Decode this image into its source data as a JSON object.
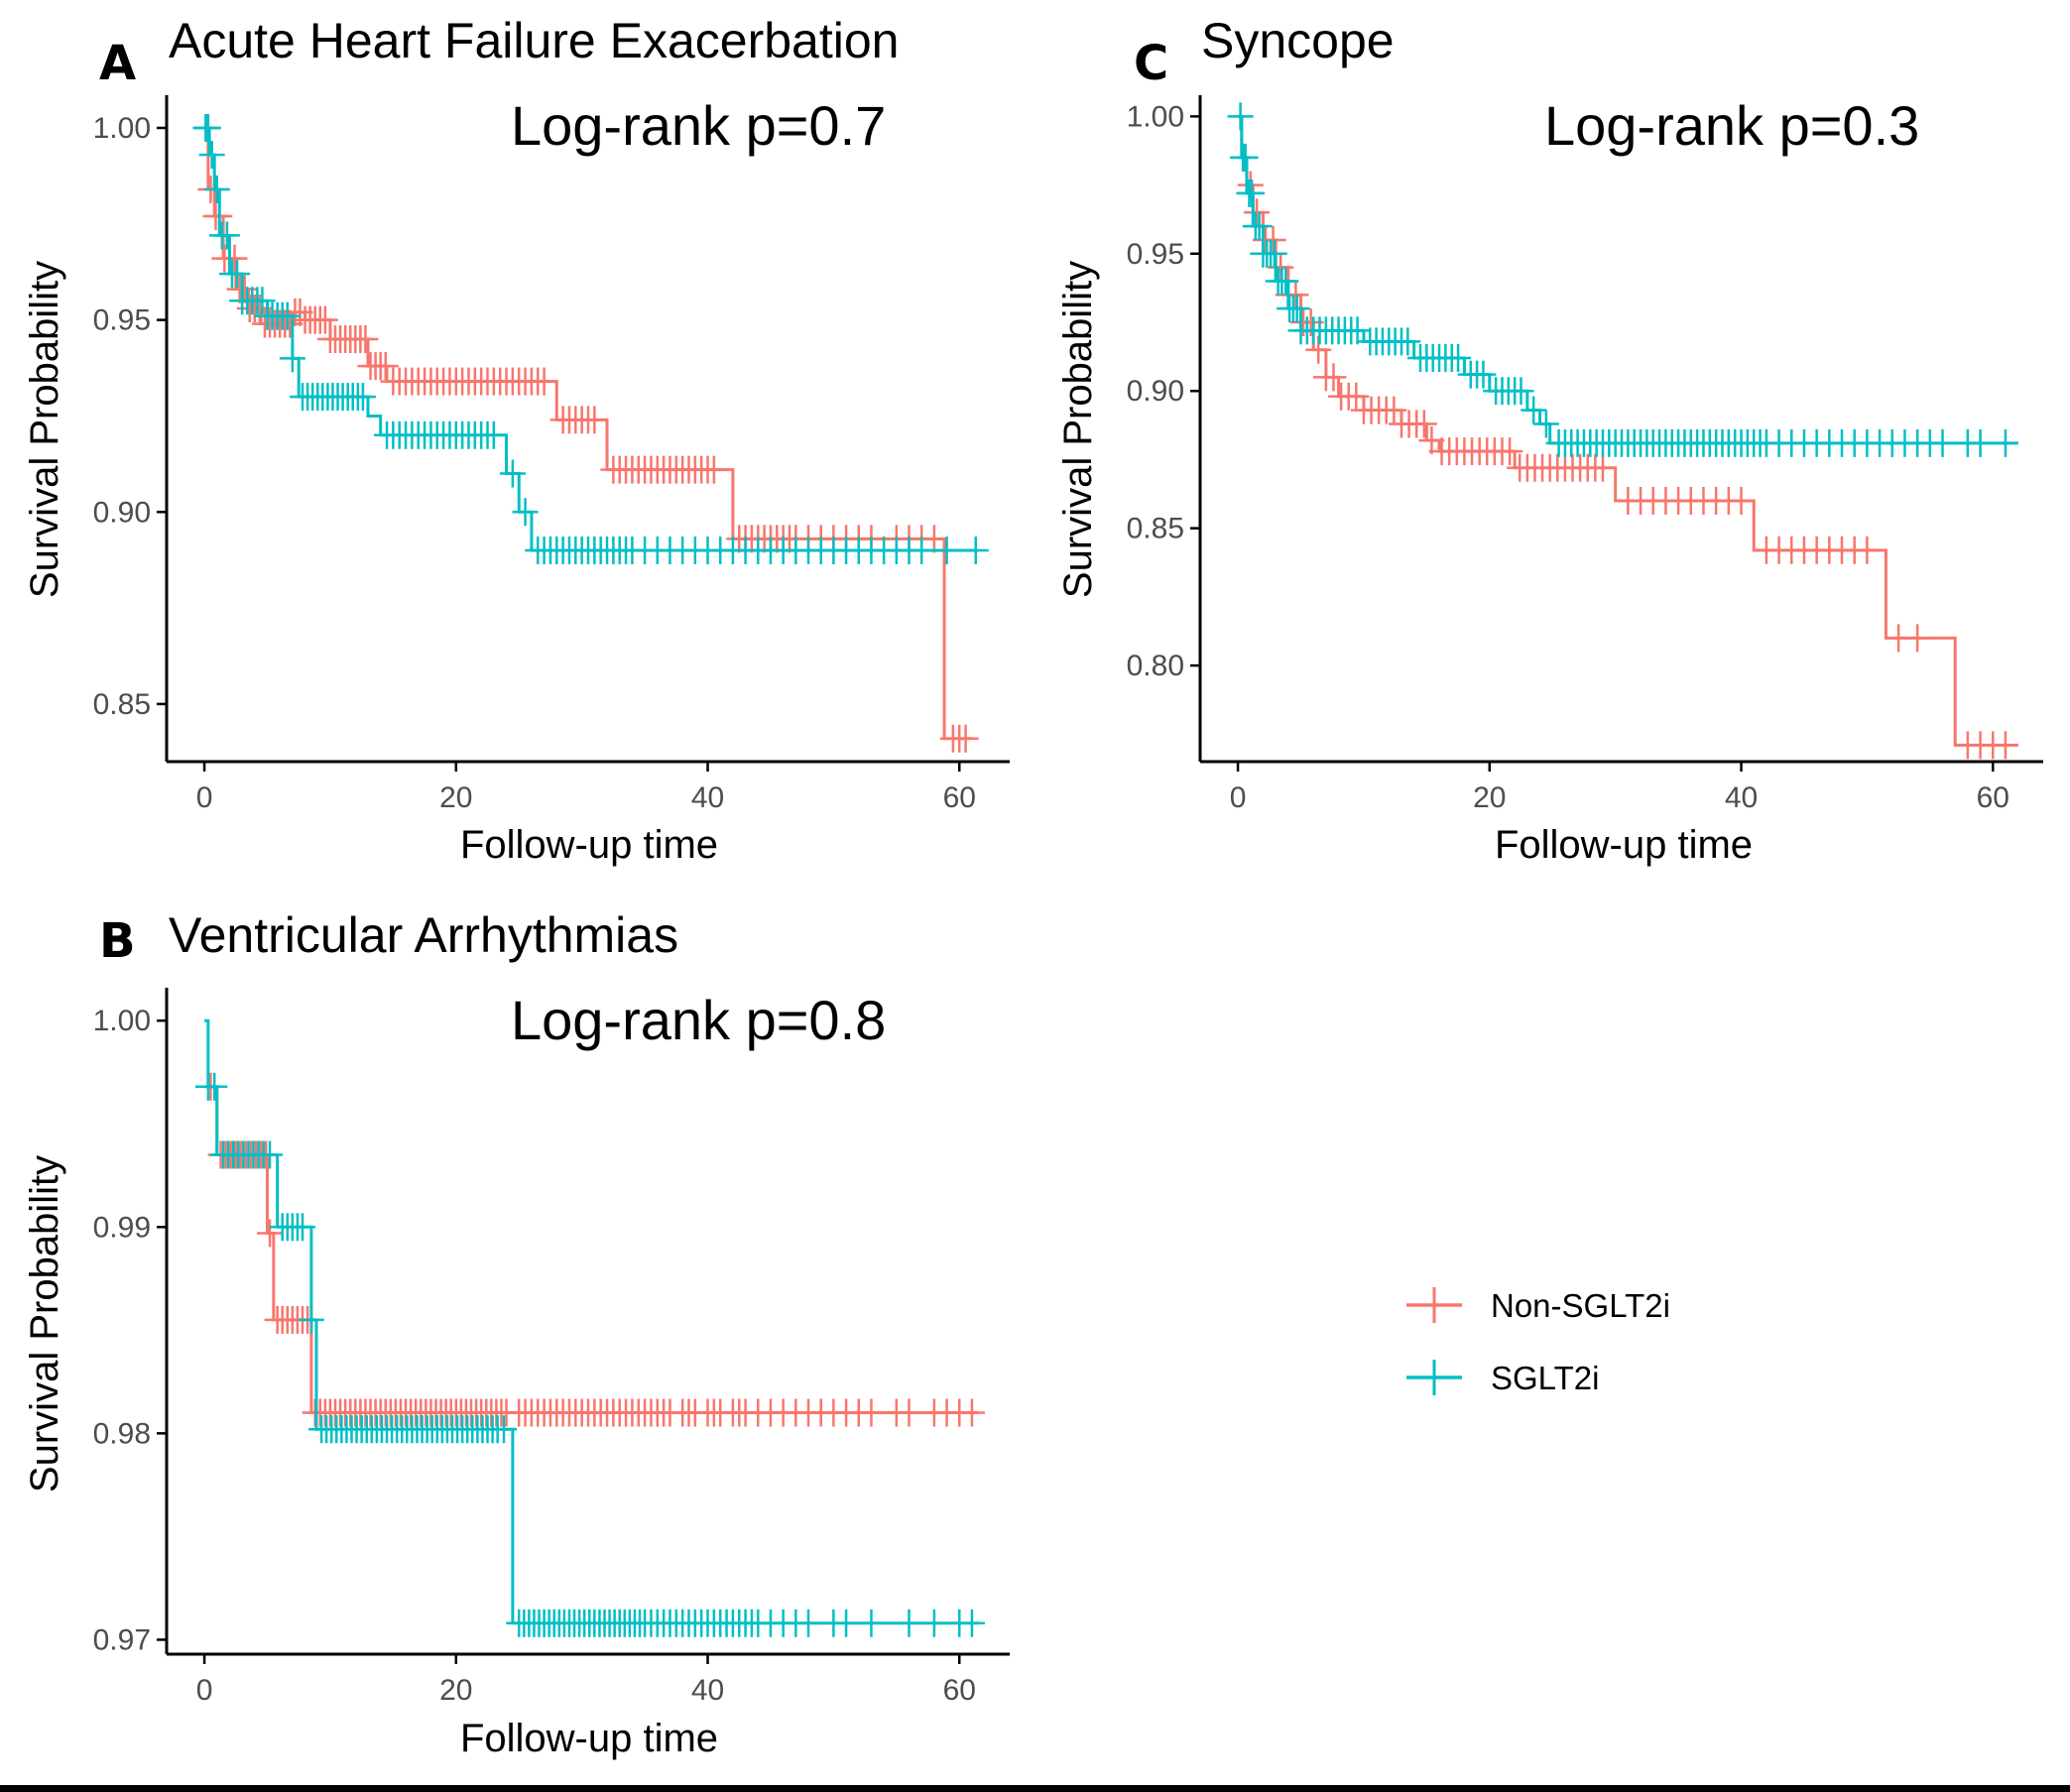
{
  "colors": {
    "non_sglt2i": "#F8766D",
    "sglt2i": "#00BFC4",
    "axis": "#000000",
    "tick_text": "#4D4D4D"
  },
  "legend": {
    "position": "right",
    "items": [
      {
        "label": "Non-SGLT2i",
        "color": "#F8766D"
      },
      {
        "label": "SGLT2i",
        "color": "#00BFC4"
      }
    ]
  },
  "chart_data": [
    {
      "panel": "A",
      "type": "line",
      "title": "Acute Heart Failure Exacerbation",
      "annotation": "Log-rank p=0.7",
      "xlabel": "Follow-up time",
      "ylabel": "Survival Probability",
      "xlim": [
        -3,
        64
      ],
      "ylim": [
        0.835,
        1.008
      ],
      "xticks": [
        "0",
        "20",
        "40",
        "60"
      ],
      "yticks": [
        "0.85",
        "0.90",
        "0.95",
        "1.00"
      ],
      "series": [
        {
          "name": "Non-SGLT2i",
          "steps": [
            [
              0,
              1.0
            ],
            [
              0.3,
              0.984
            ],
            [
              0.8,
              0.977
            ],
            [
              1.5,
              0.966
            ],
            [
              2.5,
              0.958
            ],
            [
              3.5,
              0.953
            ],
            [
              4.5,
              0.949
            ],
            [
              7,
              0.952
            ],
            [
              8,
              0.95
            ],
            [
              10,
              0.945
            ],
            [
              13,
              0.938
            ],
            [
              14.5,
              0.934
            ],
            [
              28,
              0.924
            ],
            [
              32,
              0.911
            ],
            [
              42,
              0.893
            ],
            [
              58.8,
              0.841
            ],
            [
              61,
              0.841
            ]
          ],
          "censors": [
            0.2,
            0.5,
            0.9,
            1.2,
            1.6,
            2.0,
            2.4,
            2.8,
            3.2,
            3.6,
            4.0,
            4.4,
            4.8,
            5.2,
            5.6,
            6.0,
            6.4,
            6.8,
            7.2,
            7.6,
            8.0,
            8.4,
            8.8,
            9.2,
            9.6,
            10.0,
            10.4,
            10.8,
            11.2,
            11.6,
            12.0,
            12.4,
            12.8,
            13.2,
            13.6,
            14.0,
            14.4,
            15,
            15.5,
            16,
            16.5,
            17,
            17.5,
            18,
            18.5,
            19,
            19.5,
            20,
            20.5,
            21,
            21.5,
            22,
            22.5,
            23,
            23.5,
            24,
            24.5,
            25,
            25.5,
            26,
            26.5,
            27,
            28.5,
            29,
            29.5,
            30,
            30.5,
            31,
            32.5,
            33,
            33.5,
            34,
            34.5,
            35,
            35.5,
            36,
            36.5,
            37,
            37.5,
            38,
            38.5,
            39,
            39.5,
            40,
            40.5,
            42.5,
            43,
            43.5,
            44,
            44.5,
            45,
            45.5,
            46,
            46.5,
            47,
            48,
            49,
            50,
            51,
            52,
            53,
            55,
            56,
            57,
            58,
            59.5,
            60,
            60.5
          ]
        },
        {
          "name": "SGLT2i",
          "steps": [
            [
              0,
              1.0
            ],
            [
              0.4,
              0.993
            ],
            [
              0.8,
              0.984
            ],
            [
              1.2,
              0.972
            ],
            [
              2,
              0.962
            ],
            [
              3,
              0.955
            ],
            [
              5,
              0.951
            ],
            [
              7,
              0.94
            ],
            [
              7.5,
              0.93
            ],
            [
              13,
              0.925
            ],
            [
              14,
              0.92
            ],
            [
              24,
              0.91
            ],
            [
              25,
              0.9
            ],
            [
              26,
              0.89
            ],
            [
              61.5,
              0.89
            ]
          ],
          "censors": [
            0.1,
            0.3,
            0.6,
            1.0,
            1.4,
            1.8,
            2.2,
            2.6,
            3.0,
            3.4,
            3.8,
            4.2,
            4.6,
            5.0,
            5.4,
            5.8,
            6.2,
            6.6,
            7.0,
            7.8,
            8.2,
            8.6,
            9.0,
            9.4,
            9.8,
            10.2,
            10.6,
            11.0,
            11.4,
            11.8,
            12.2,
            12.6,
            14.5,
            15,
            15.5,
            16,
            16.5,
            17,
            17.5,
            18,
            18.5,
            19,
            19.5,
            20,
            20.5,
            21,
            21.5,
            22,
            22.5,
            23,
            24.5,
            25.5,
            26.5,
            27,
            27.5,
            28,
            28.5,
            29,
            29.5,
            30,
            30.5,
            31,
            31.5,
            32,
            32.5,
            33,
            33.5,
            34,
            35,
            36,
            37,
            38,
            39,
            40,
            41,
            42,
            43,
            44,
            45,
            46,
            47,
            48,
            49,
            50,
            51,
            52,
            53,
            54,
            55,
            56,
            57,
            59,
            61.3
          ]
        }
      ]
    },
    {
      "panel": "C",
      "type": "line",
      "title": "Syncope",
      "annotation": "Log-rank p=0.3",
      "xlabel": "Follow-up time",
      "ylabel": "Survival Probability",
      "xlim": [
        -3,
        64
      ],
      "ylim": [
        0.765,
        1.007
      ],
      "xticks": [
        "0",
        "20",
        "40",
        "60"
      ],
      "yticks": [
        "0.80",
        "0.85",
        "0.90",
        "0.95",
        "1.00"
      ],
      "series": [
        {
          "name": "Non-SGLT2i",
          "steps": [
            [
              0,
              1.0
            ],
            [
              0.3,
              0.985
            ],
            [
              0.7,
              0.975
            ],
            [
              1.2,
              0.965
            ],
            [
              2,
              0.955
            ],
            [
              3,
              0.945
            ],
            [
              4,
              0.935
            ],
            [
              5,
              0.925
            ],
            [
              6,
              0.915
            ],
            [
              7,
              0.905
            ],
            [
              8,
              0.898
            ],
            [
              10,
              0.893
            ],
            [
              13,
              0.888
            ],
            [
              15,
              0.882
            ],
            [
              16,
              0.878
            ],
            [
              22,
              0.872
            ],
            [
              30,
              0.86
            ],
            [
              41,
              0.842
            ],
            [
              51.5,
              0.81
            ],
            [
              57,
              0.771
            ],
            [
              62,
              0.771
            ]
          ],
          "censors": [
            0.5,
            1.0,
            1.5,
            2.2,
            2.8,
            3.4,
            4.0,
            4.6,
            5.2,
            5.8,
            6.4,
            7.0,
            7.6,
            8.2,
            8.8,
            9.4,
            10.0,
            10.6,
            11.2,
            11.8,
            12.4,
            13.0,
            13.6,
            14.2,
            14.8,
            15.4,
            16.2,
            16.8,
            17.4,
            18.0,
            18.6,
            19.2,
            19.8,
            20.4,
            21.0,
            21.6,
            22.4,
            23.0,
            23.6,
            24.2,
            24.8,
            25.4,
            26.0,
            26.6,
            27.2,
            27.8,
            28.4,
            29,
            31,
            32,
            33,
            34,
            35,
            36,
            37,
            38,
            39,
            40,
            42,
            43,
            44,
            45,
            46,
            47,
            48,
            49,
            50,
            52.5,
            54,
            58,
            59,
            60,
            61
          ]
        },
        {
          "name": "SGLT2i",
          "steps": [
            [
              0,
              1.0
            ],
            [
              0.3,
              0.985
            ],
            [
              0.7,
              0.972
            ],
            [
              1.2,
              0.96
            ],
            [
              2,
              0.95
            ],
            [
              3,
              0.94
            ],
            [
              4,
              0.93
            ],
            [
              5,
              0.922
            ],
            [
              10,
              0.918
            ],
            [
              14,
              0.912
            ],
            [
              18,
              0.906
            ],
            [
              20,
              0.9
            ],
            [
              23,
              0.893
            ],
            [
              24,
              0.888
            ],
            [
              24.8,
              0.881
            ],
            [
              62,
              0.881
            ]
          ],
          "censors": [
            0.2,
            0.4,
            0.6,
            0.9,
            1.1,
            1.4,
            1.7,
            2.0,
            2.3,
            2.6,
            2.9,
            3.2,
            3.5,
            3.8,
            4.1,
            4.4,
            4.7,
            5.0,
            5.5,
            6.0,
            6.5,
            7.0,
            7.5,
            8.0,
            8.5,
            9.0,
            9.5,
            10.5,
            11.0,
            11.5,
            12.0,
            12.5,
            13.0,
            13.5,
            14.5,
            15.0,
            15.5,
            16.0,
            16.5,
            17.0,
            17.5,
            18.5,
            19.0,
            19.5,
            20.5,
            21.0,
            21.5,
            22.0,
            22.5,
            23.5,
            24.5,
            25.5,
            26,
            26.5,
            27,
            27.5,
            28,
            28.5,
            29,
            29.5,
            30,
            30.5,
            31,
            31.5,
            32,
            32.5,
            33,
            33.5,
            34,
            34.5,
            35,
            35.5,
            36,
            36.5,
            37,
            37.5,
            38,
            38.5,
            39,
            39.5,
            40,
            40.5,
            41,
            41.5,
            42,
            43,
            44,
            45,
            46,
            47,
            48,
            49,
            50,
            51,
            52,
            53,
            54,
            55,
            56,
            58,
            59,
            61
          ]
        }
      ]
    },
    {
      "panel": "B",
      "type": "line",
      "title": "Ventricular Arrhythmias",
      "annotation": "Log-rank p=0.8",
      "xlabel": "Follow-up time",
      "ylabel": "Survival Probability",
      "xlim": [
        -3,
        64
      ],
      "ylim": [
        0.9693,
        1.0015
      ],
      "xticks": [
        "0",
        "20",
        "40",
        "60"
      ],
      "yticks": [
        "0.97",
        "0.98",
        "0.99",
        "1.00"
      ],
      "series": [
        {
          "name": "Non-SGLT2i",
          "steps": [
            [
              0,
              0.9968
            ],
            [
              1.0,
              0.9935
            ],
            [
              5.0,
              0.9897
            ],
            [
              5.5,
              0.9855
            ],
            [
              8.5,
              0.981
            ],
            [
              61.5,
              0.981
            ]
          ],
          "censors": [
            0.5,
            1.3,
            1.7,
            2.1,
            2.5,
            2.9,
            3.3,
            3.7,
            4.1,
            4.5,
            4.9,
            5.2,
            5.8,
            6.2,
            6.6,
            7.0,
            7.4,
            7.8,
            8.2,
            8.8,
            9.2,
            9.6,
            10.0,
            10.4,
            10.8,
            11.2,
            11.6,
            12.0,
            12.4,
            12.8,
            13.2,
            13.6,
            14.0,
            14.4,
            14.8,
            15.2,
            15.6,
            16.0,
            16.4,
            16.8,
            17.2,
            17.6,
            18.0,
            18.4,
            18.8,
            19.2,
            19.6,
            20.0,
            20.4,
            20.8,
            21.2,
            21.6,
            22.0,
            22.4,
            22.8,
            23.2,
            23.6,
            24.0,
            25,
            25.5,
            26,
            26.5,
            27,
            27.5,
            28,
            28.5,
            29,
            29.5,
            30,
            30.5,
            31,
            31.5,
            32,
            32.5,
            33,
            33.5,
            34,
            34.5,
            35,
            35.5,
            36,
            36.5,
            37,
            38,
            38.5,
            39,
            40,
            40.5,
            41,
            42,
            42.5,
            43,
            44,
            45,
            46,
            47,
            48,
            49,
            50,
            51,
            52,
            53,
            55,
            56,
            58,
            59,
            60,
            61
          ]
        },
        {
          "name": "SGLT2i",
          "steps": [
            [
              0,
              1.0
            ],
            [
              0.3,
              0.9968
            ],
            [
              1.0,
              0.9935
            ],
            [
              5.8,
              0.99
            ],
            [
              8.5,
              0.9855
            ],
            [
              8.9,
              0.9802
            ],
            [
              24.5,
              0.9802
            ],
            [
              24.5,
              0.9708
            ],
            [
              61.5,
              0.9708
            ]
          ],
          "censors": [
            0.3,
            0.8,
            1.5,
            1.9,
            2.3,
            2.7,
            3.1,
            3.5,
            3.9,
            4.3,
            4.7,
            5.2,
            6.2,
            6.6,
            7.0,
            7.4,
            7.8,
            8.5,
            9.3,
            9.7,
            10.1,
            10.5,
            10.9,
            11.3,
            11.7,
            12.1,
            12.5,
            12.9,
            13.3,
            13.7,
            14.1,
            14.5,
            14.9,
            15.3,
            15.7,
            16.1,
            16.5,
            16.9,
            17.3,
            17.7,
            18.1,
            18.5,
            18.9,
            19.3,
            19.7,
            20.1,
            20.5,
            20.9,
            21.3,
            21.7,
            22.1,
            22.5,
            22.9,
            23.3,
            23.8,
            25,
            25.4,
            25.8,
            26.2,
            26.6,
            27,
            27.4,
            27.8,
            28.2,
            28.6,
            29,
            29.4,
            29.8,
            30.2,
            30.6,
            31,
            31.4,
            31.8,
            32.2,
            32.6,
            33,
            33.4,
            33.8,
            34.2,
            34.6,
            35,
            35.5,
            36,
            36.5,
            37,
            37.5,
            38,
            38.5,
            39,
            39.5,
            40,
            40.5,
            41,
            41.5,
            42,
            42.5,
            43,
            43.5,
            44,
            45,
            46,
            47,
            48,
            50,
            51,
            53,
            56,
            58,
            60,
            61
          ]
        }
      ]
    }
  ]
}
